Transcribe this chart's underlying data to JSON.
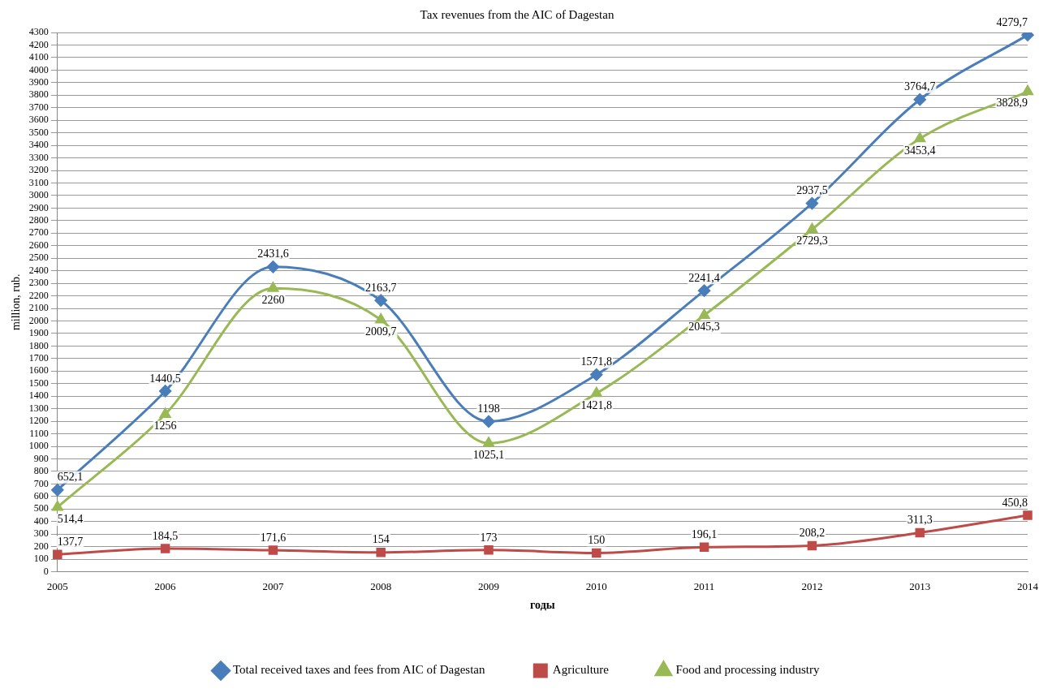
{
  "chart_data": {
    "type": "line",
    "title": "Tax revenues from the AIC of Dagestan",
    "xlabel": "годы",
    "ylabel": "million, rub.",
    "categories": [
      "2005",
      "2006",
      "2007",
      "2008",
      "2009",
      "2010",
      "2011",
      "2012",
      "2013",
      "2014"
    ],
    "ylim": [
      0,
      4300
    ],
    "yticks": [
      0,
      100,
      200,
      300,
      400,
      500,
      600,
      700,
      800,
      900,
      1000,
      1100,
      1200,
      1300,
      1400,
      1500,
      1600,
      1700,
      1800,
      1900,
      2000,
      2100,
      2200,
      2300,
      2400,
      2500,
      2600,
      2700,
      2800,
      2900,
      3000,
      3100,
      3200,
      3300,
      3400,
      3500,
      3600,
      3700,
      3800,
      3900,
      4000,
      4100,
      4200,
      4300
    ],
    "grid": "y",
    "legend": "bottom",
    "series": [
      {
        "name": "Total received taxes and fees from AIC of Dagestan",
        "color": "#4a7ebb",
        "marker": "diamond",
        "values": [
          652.1,
          1440.5,
          2431.6,
          2163.7,
          1198,
          1571.8,
          2241.4,
          2937.5,
          3764.7,
          4279.7
        ],
        "value_labels": [
          "652,1",
          "1440,5",
          "2431,6",
          "2163,7",
          "1198",
          "1571,8",
          "2241,4",
          "2937,5",
          "3764,7",
          "4279,7"
        ]
      },
      {
        "name": "Agriculture",
        "color": "#be4b48",
        "marker": "square",
        "values": [
          137.7,
          184.5,
          171.6,
          154,
          173,
          150,
          196.1,
          208.2,
          311.3,
          450.8
        ],
        "value_labels": [
          "137,7",
          "184,5",
          "171,6",
          "154",
          "173",
          "150",
          "196,1",
          "208,2",
          "311,3",
          "450,8"
        ]
      },
      {
        "name": "Food and processing industry",
        "color": "#98b954",
        "marker": "triangle",
        "values": [
          514.4,
          1256,
          2260,
          2009.7,
          1025.1,
          1421.8,
          2045.3,
          2729.3,
          3453.4,
          3828.9
        ],
        "value_labels": [
          "514,4",
          "1256",
          "2260",
          "2009,7",
          "1025,1",
          "1421,8",
          "2045,3",
          "2729,3",
          "3453,4",
          "3828,9"
        ]
      }
    ]
  }
}
